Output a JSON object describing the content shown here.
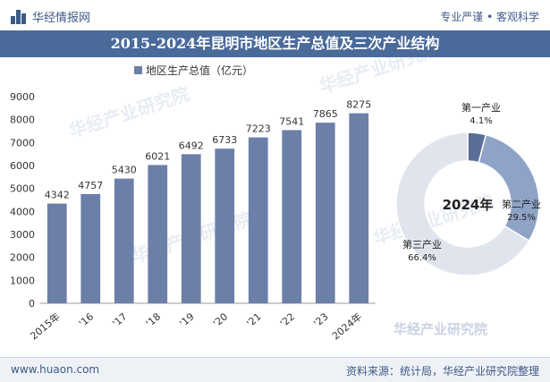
{
  "header": {
    "brand": "华经情报网",
    "tagline": "专业严谨 • 客观科学"
  },
  "title": "2015-2024年昆明市地区生产总值及三次产业结构",
  "footer": {
    "website": "www.huaon.com",
    "source": "资料来源：统计局，华经产业研究院整理"
  },
  "watermark": "华经产业研究院",
  "colors": {
    "bar": "#6b7fa8",
    "primary": "#5a6e98",
    "secondary": "#8fa3c6",
    "tertiary": "#dfe4ed",
    "header": "#4a6a9a"
  },
  "chart_data": [
    {
      "type": "bar",
      "legend": "地区生产总值（亿元）",
      "categories": [
        "2015年",
        "'16",
        "'17",
        "'18",
        "'19",
        "'20",
        "'21",
        "'22",
        "'23",
        "2024年"
      ],
      "values": [
        4342,
        4757,
        5430,
        6021,
        6492,
        6733,
        7223,
        7541,
        7865,
        8275
      ],
      "yticks": [
        0,
        1000,
        2000,
        3000,
        4000,
        5000,
        6000,
        7000,
        8000,
        9000
      ],
      "ylim": [
        0,
        9000
      ]
    },
    {
      "type": "pie",
      "center_label": "2024年",
      "slices": [
        {
          "label": "第一产业",
          "value": 4.1,
          "value_label": "4.1%"
        },
        {
          "label": "第二产业",
          "value": 29.5,
          "value_label": "29.5%"
        },
        {
          "label": "第三产业",
          "value": 66.4,
          "value_label": "66.4%"
        }
      ]
    }
  ]
}
